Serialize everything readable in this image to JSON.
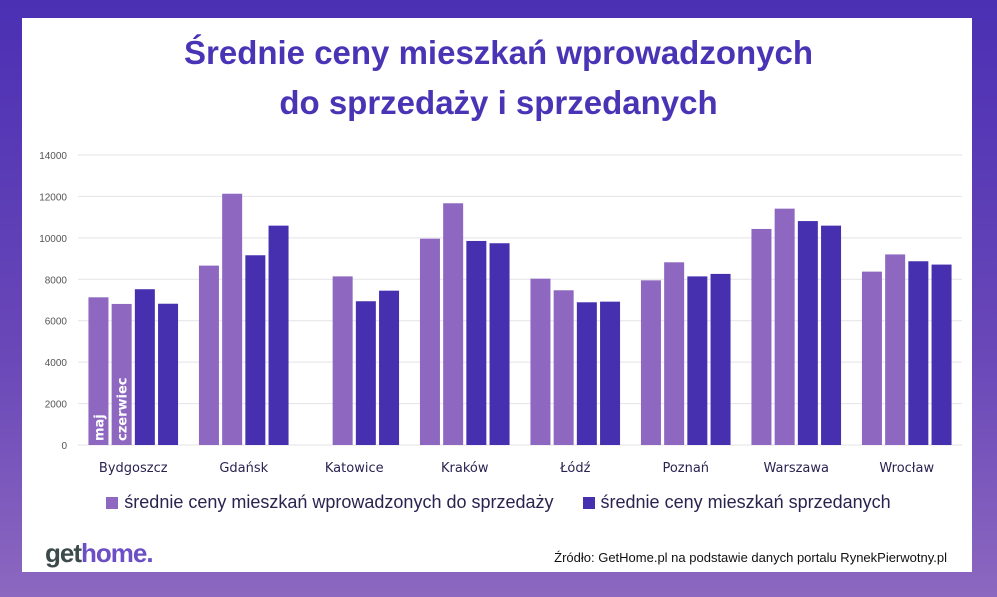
{
  "title_lines": [
    "Średnie ceny mieszkań wprowadzonych",
    "do sprzedaży i sprzedanych"
  ],
  "logo": {
    "part1": "get",
    "part2": "home."
  },
  "source": "Źródło: GetHome.pl na podstawie danych portalu RynekPierwotny.pl",
  "colors": {
    "listed": "#8e68c0",
    "sold": "#4630b0",
    "title": "#4a34b6"
  },
  "chart_data": {
    "type": "bar",
    "ylim": [
      0,
      14000
    ],
    "yticks": [
      0,
      2000,
      4000,
      6000,
      8000,
      10000,
      12000,
      14000
    ],
    "grid": true,
    "legend_placement": "bottom",
    "categories": [
      "Bydgoszcz",
      "Gdańsk",
      "Katowice",
      "Kraków",
      "Łódź",
      "Poznań",
      "Warszawa",
      "Wrocław"
    ],
    "bar_labels": [
      "maj",
      "czerwiec"
    ],
    "series": [
      {
        "name": "średnie ceny mieszkań wprowadzonych do sprzedaży",
        "month": "maj",
        "color": "#8e68c0",
        "values": [
          7130,
          8660,
          null,
          9960,
          8030,
          7950,
          10430,
          8370
        ]
      },
      {
        "name": "średnie ceny mieszkań wprowadzonych do sprzedaży",
        "month": "czerwiec",
        "color": "#8e68c0",
        "values": [
          6810,
          12130,
          8140,
          11670,
          7470,
          8820,
          11410,
          9200
        ]
      },
      {
        "name": "średnie ceny mieszkań sprzedanych",
        "month": "maj",
        "color": "#4630b0",
        "values": [
          7520,
          9160,
          6940,
          9850,
          6890,
          8140,
          10810,
          8870
        ]
      },
      {
        "name": "średnie ceny mieszkań sprzedanych",
        "month": "czerwiec",
        "color": "#4630b0",
        "values": [
          6820,
          10590,
          7450,
          9740,
          6920,
          8260,
          10590,
          8710
        ]
      }
    ],
    "legend": [
      "średnie ceny mieszkań wprowadzonych do sprzedaży",
      "średnie ceny mieszkań sprzedanych"
    ]
  }
}
